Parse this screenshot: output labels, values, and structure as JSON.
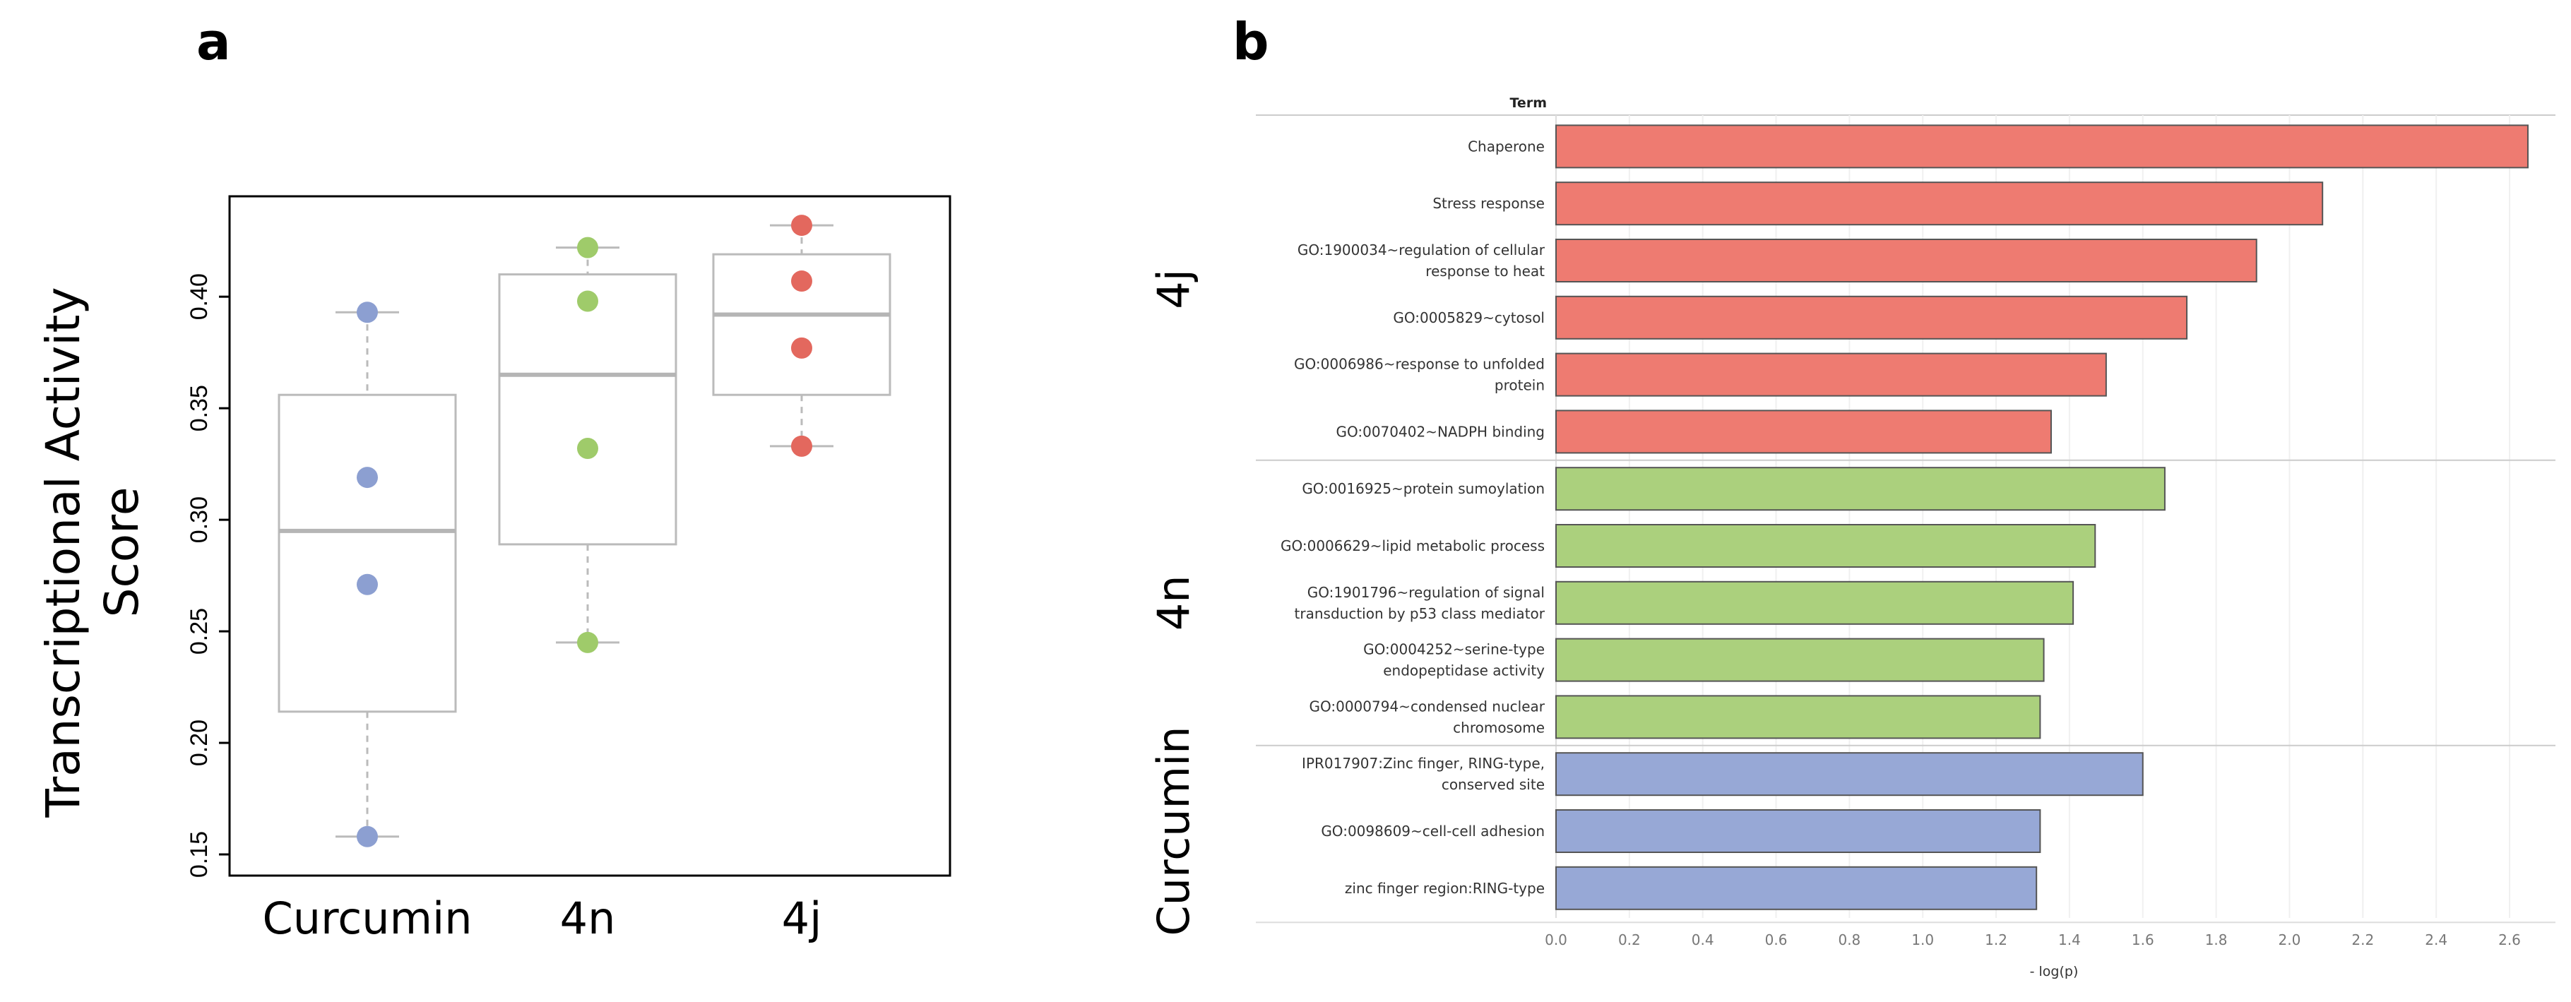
{
  "panels": {
    "a_label": "a",
    "b_label": "b"
  },
  "chart_data": [
    {
      "type": "box",
      "ylabel_line1": "Transcriptional Activity",
      "ylabel_line2": "Score",
      "ylim": [
        0.15,
        0.445
      ],
      "yticks": [
        "0.15",
        "0.20",
        "0.25",
        "0.30",
        "0.35",
        "0.40"
      ],
      "groups": [
        {
          "name": "Curcumin",
          "color": "#8c9fd1",
          "points": [
            0.393,
            0.319,
            0.271,
            0.158
          ],
          "box": {
            "q1": 0.214,
            "median": 0.295,
            "q3": 0.356,
            "whisker_low": 0.158,
            "whisker_high": 0.393
          }
        },
        {
          "name": "4n",
          "color": "#9fcb6a",
          "points": [
            0.422,
            0.398,
            0.332,
            0.245
          ],
          "box": {
            "q1": 0.289,
            "median": 0.365,
            "q3": 0.41,
            "whisker_low": 0.245,
            "whisker_high": 0.422
          }
        },
        {
          "name": "4j",
          "color": "#e3685e",
          "points": [
            0.432,
            0.407,
            0.377,
            0.333
          ],
          "box": {
            "q1": 0.356,
            "median": 0.392,
            "q3": 0.419,
            "whisker_low": 0.333,
            "whisker_high": 0.432
          }
        }
      ]
    },
    {
      "type": "bar",
      "orientation": "horizontal",
      "column_header": "Term",
      "xlabel": "- log(p)",
      "xlim": [
        0,
        2.7
      ],
      "xticks": [
        "0.0",
        "0.2",
        "0.4",
        "0.6",
        "0.8",
        "1.0",
        "1.2",
        "1.4",
        "1.6",
        "1.8",
        "2.0",
        "2.2",
        "2.4",
        "2.6"
      ],
      "groups": [
        {
          "name": "4j",
          "color": "#ee7b71",
          "terms": [
            {
              "label": [
                "Chaperone"
              ],
              "value": 2.65
            },
            {
              "label": [
                "Stress response"
              ],
              "value": 2.09
            },
            {
              "label": [
                "GO:1900034~regulation of cellular",
                "response to heat"
              ],
              "value": 1.91
            },
            {
              "label": [
                "GO:0005829~cytosol"
              ],
              "value": 1.72
            },
            {
              "label": [
                "GO:0006986~response to unfolded",
                "protein"
              ],
              "value": 1.5
            },
            {
              "label": [
                "GO:0070402~NADPH binding"
              ],
              "value": 1.35
            }
          ]
        },
        {
          "name": "4n",
          "color": "#abd07d",
          "terms": [
            {
              "label": [
                "GO:0016925~protein sumoylation"
              ],
              "value": 1.66
            },
            {
              "label": [
                "GO:0006629~lipid metabolic process"
              ],
              "value": 1.47
            },
            {
              "label": [
                "GO:1901796~regulation of signal",
                "transduction by p53 class mediator"
              ],
              "value": 1.41
            },
            {
              "label": [
                "GO:0004252~serine-type",
                "endopeptidase activity"
              ],
              "value": 1.33
            },
            {
              "label": [
                "GO:0000794~condensed nuclear",
                "chromosome"
              ],
              "value": 1.32
            }
          ]
        },
        {
          "name": "Curcumin",
          "color": "#97a8d6",
          "terms": [
            {
              "label": [
                "IPR017907:Zinc finger, RING-type,",
                "conserved site"
              ],
              "value": 1.6
            },
            {
              "label": [
                "GO:0098609~cell-cell adhesion"
              ],
              "value": 1.32
            },
            {
              "label": [
                "zinc finger region:RING-type"
              ],
              "value": 1.31
            }
          ]
        }
      ]
    }
  ]
}
